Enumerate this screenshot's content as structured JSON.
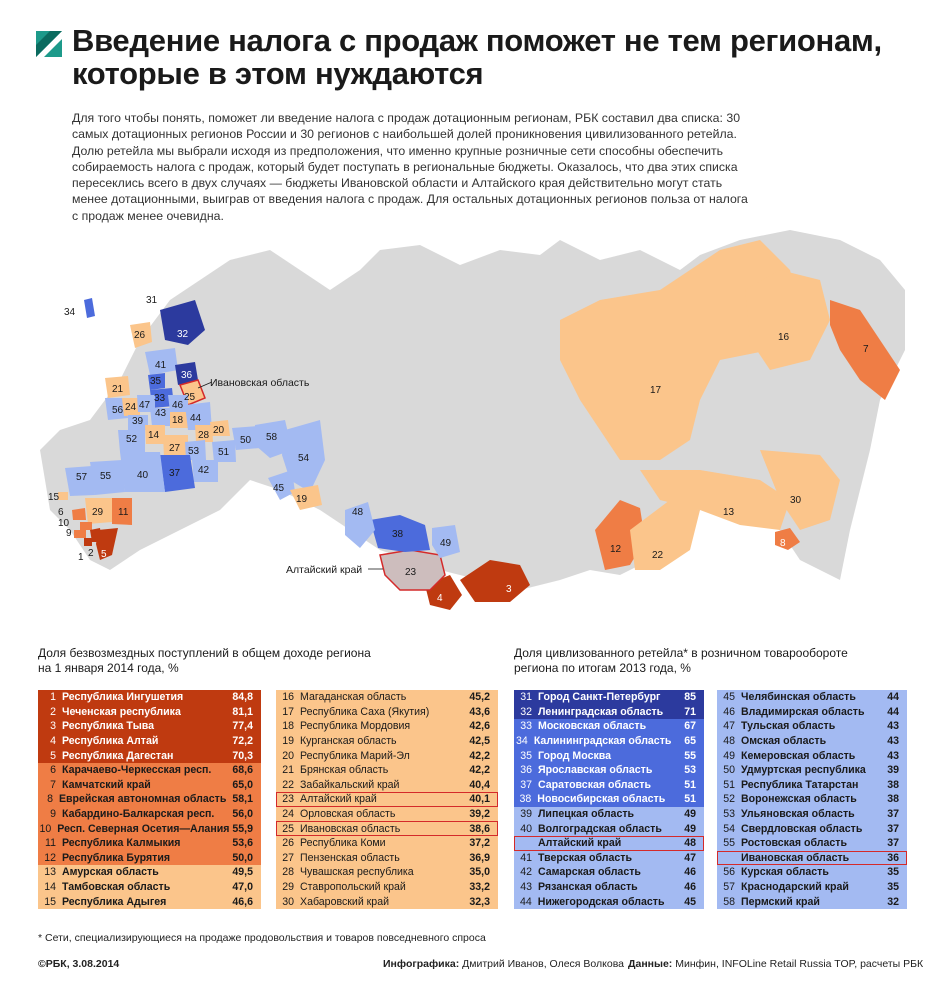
{
  "header": {
    "title_line1": "Введение налога с продаж поможет не тем регионам,",
    "title_line2": "которые в этом нуждаются",
    "intro": "Для того чтобы понять, поможет ли введение налога с продаж дотационным регионам, РБК составил два списка: 30 самых дотационных регионов России и 30 регионов с наибольшей долей проникновения цивилизованного ретейла. Долю ретейла мы выбрали исходя из предположения, что именно крупные розничные сети способны обеспечить собираемость налога с продаж, который будет поступать в региональные бюджеты. Оказалось, что два этих списка пересеклись всего в двух случаях — бюджеты Ивановской области и Алтайского края действительно могут стать менее дотационными, выиграв от введения налога с продаж. Для остальных дотационных регионов польза от налога с продаж менее очевидна."
  },
  "map": {
    "callout_ivanovo": "Ивановская область",
    "callout_altai": "Алтайский край",
    "labels": [
      "1",
      "2",
      "3",
      "4",
      "5",
      "6",
      "7",
      "8",
      "9",
      "10",
      "11",
      "12",
      "13",
      "14",
      "15",
      "16",
      "17",
      "18",
      "19",
      "20",
      "21",
      "22",
      "23",
      "24",
      "25",
      "26",
      "27",
      "28",
      "29",
      "30",
      "31",
      "32",
      "33",
      "34",
      "35",
      "36",
      "37",
      "38",
      "39",
      "40",
      "41",
      "42",
      "43",
      "44",
      "45",
      "46",
      "47",
      "48",
      "49",
      "50",
      "51",
      "52",
      "53",
      "54",
      "55",
      "56",
      "57",
      "58"
    ]
  },
  "colors": {
    "dark_red": "#bf3a10",
    "orange": "#ef7d45",
    "peach": "#fbc58b",
    "navy": "#2c3a9e",
    "blue": "#4c6bdc",
    "light_blue": "#a3baf2",
    "gray": "#d9d9d9",
    "highlight": "#d42a2a",
    "overlap": "#cdbdbd"
  },
  "subsidy": {
    "heading_line1": "Доля безвозмездных поступлений в общем доходе региона",
    "heading_line2": "на 1 января 2014 года, %",
    "col1": [
      {
        "n": "1",
        "name": "Республика Ингушетия",
        "value": "84,8"
      },
      {
        "n": "2",
        "name": "Чеченская республика",
        "value": "81,1"
      },
      {
        "n": "3",
        "name": "Республика Тыва",
        "value": "77,4"
      },
      {
        "n": "4",
        "name": "Республика Алтай",
        "value": "72,2"
      },
      {
        "n": "5",
        "name": "Республика Дагестан",
        "value": "70,3"
      },
      {
        "n": "6",
        "name": "Карачаево-Черкесская респ.",
        "value": "68,6"
      },
      {
        "n": "7",
        "name": "Камчатский край",
        "value": "65,0"
      },
      {
        "n": "8",
        "name": "Еврейская автономная область",
        "value": "58,1"
      },
      {
        "n": "9",
        "name": "Кабардино-Балкарская респ.",
        "value": "56,0"
      },
      {
        "n": "10",
        "name": "Респ. Северная Осетия—Алания",
        "value": "55,9"
      },
      {
        "n": "11",
        "name": "Республика Калмыкия",
        "value": "53,6"
      },
      {
        "n": "12",
        "name": "Республика Бурятия",
        "value": "50,0"
      },
      {
        "n": "13",
        "name": "Амурская область",
        "value": "49,5"
      },
      {
        "n": "14",
        "name": "Тамбовская область",
        "value": "47,0"
      },
      {
        "n": "15",
        "name": "Республика Адыгея",
        "value": "46,6"
      }
    ],
    "col2": [
      {
        "n": "16",
        "name": "Магаданская область",
        "value": "45,2"
      },
      {
        "n": "17",
        "name": "Республика Саха (Якутия)",
        "value": "43,6"
      },
      {
        "n": "18",
        "name": "Республика Мордовия",
        "value": "42,6"
      },
      {
        "n": "19",
        "name": "Курганская область",
        "value": "42,5"
      },
      {
        "n": "20",
        "name": "Республика Марий-Эл",
        "value": "42,2"
      },
      {
        "n": "21",
        "name": "Брянская область",
        "value": "42,2"
      },
      {
        "n": "22",
        "name": "Забайкальский край",
        "value": "40,4"
      },
      {
        "n": "23",
        "name": "Алтайский край",
        "value": "40,1"
      },
      {
        "n": "24",
        "name": "Орловская область",
        "value": "39,2"
      },
      {
        "n": "25",
        "name": "Ивановская область",
        "value": "38,6"
      },
      {
        "n": "26",
        "name": "Республика Коми",
        "value": "37,2"
      },
      {
        "n": "27",
        "name": "Пензенская область",
        "value": "36,9"
      },
      {
        "n": "28",
        "name": "Чувашская республика",
        "value": "35,0"
      },
      {
        "n": "29",
        "name": "Ставропольский край",
        "value": "33,2"
      },
      {
        "n": "30",
        "name": "Хабаровский край",
        "value": "32,3"
      }
    ]
  },
  "retail": {
    "heading_line1": "Доля цивлизованного ретейла* в розничном товарообороте",
    "heading_line2": "региона по итогам 2013 года, %",
    "col1": [
      {
        "n": "31",
        "name": "Город Санкт-Петербург",
        "value": "85"
      },
      {
        "n": "32",
        "name": "Ленинградская область",
        "value": "71"
      },
      {
        "n": "33",
        "name": "Московская область",
        "value": "67"
      },
      {
        "n": "34",
        "name": "Калининградская область",
        "value": "65"
      },
      {
        "n": "35",
        "name": "Город Москва",
        "value": "55"
      },
      {
        "n": "36",
        "name": "Ярославская область",
        "value": "53"
      },
      {
        "n": "37",
        "name": "Саратовская область",
        "value": "51"
      },
      {
        "n": "38",
        "name": "Новосибирская область",
        "value": "51"
      },
      {
        "n": "39",
        "name": "Липецкая область",
        "value": "49"
      },
      {
        "n": "40",
        "name": "Волгоградская область",
        "value": "49"
      },
      {
        "n": "",
        "name": "Алтайский край",
        "value": "48"
      },
      {
        "n": "41",
        "name": "Тверская область",
        "value": "47"
      },
      {
        "n": "42",
        "name": "Самарская область",
        "value": "46"
      },
      {
        "n": "43",
        "name": "Рязанская область",
        "value": "46"
      },
      {
        "n": "44",
        "name": "Нижегородская область",
        "value": "45"
      }
    ],
    "col2": [
      {
        "n": "45",
        "name": "Челябинская область",
        "value": "44"
      },
      {
        "n": "46",
        "name": "Владимирская область",
        "value": "44"
      },
      {
        "n": "47",
        "name": "Тульская область",
        "value": "43"
      },
      {
        "n": "48",
        "name": "Омская область",
        "value": "43"
      },
      {
        "n": "49",
        "name": "Кемеровская область",
        "value": "43"
      },
      {
        "n": "50",
        "name": "Удмуртская республика",
        "value": "39"
      },
      {
        "n": "51",
        "name": "Республика Татарстан",
        "value": "38"
      },
      {
        "n": "52",
        "name": "Воронежская область",
        "value": "38"
      },
      {
        "n": "53",
        "name": "Ульяновская область",
        "value": "37"
      },
      {
        "n": "54",
        "name": "Свердловская область",
        "value": "37"
      },
      {
        "n": "55",
        "name": "Ростовская область",
        "value": "37"
      },
      {
        "n": "",
        "name": "Ивановская область",
        "value": "36"
      },
      {
        "n": "56",
        "name": "Курская область",
        "value": "35"
      },
      {
        "n": "57",
        "name": "Краснодарский край",
        "value": "35"
      },
      {
        "n": "58",
        "name": "Пермский край",
        "value": "32"
      }
    ]
  },
  "footer": {
    "footnote": "* Сети, специализирующиеся на продаже продовольствия и товаров повседневного спроса",
    "copyright": "©РБК, 3.08.2014",
    "credits_label": "Инфографика:",
    "credits": "Дмитрий Иванов, Олеся Волкова",
    "source_label": "Данные:",
    "source": "Минфин, INFOLine Retail Russia TOP, расчеты РБК"
  }
}
